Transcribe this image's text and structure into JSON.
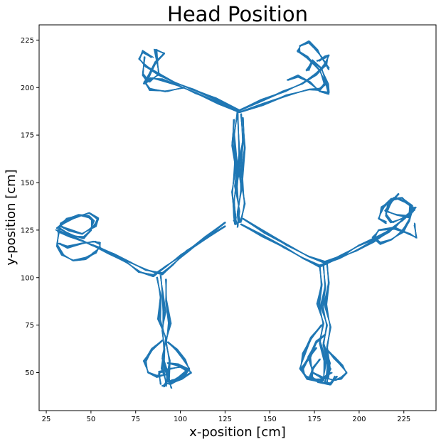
{
  "chart_data": {
    "type": "line",
    "title": "Head Position",
    "xlabel": "x-position [cm]",
    "ylabel": "y-position [cm]",
    "xlim": [
      21,
      243
    ],
    "ylim": [
      30,
      233
    ],
    "xticks": [
      25,
      50,
      75,
      100,
      125,
      150,
      175,
      200,
      225
    ],
    "yticks": [
      50,
      75,
      100,
      125,
      150,
      175,
      200,
      225
    ],
    "grid": false,
    "legend": "none",
    "color": "#1f77b4",
    "series": [
      {
        "segments": [
          {
            "x": [
              133,
              120,
              107,
              96,
              88,
              81,
              77,
              79,
              84
            ],
            "y": [
              188,
              194,
              199,
              203,
              207,
              211,
              215,
              219,
              216
            ]
          },
          {
            "x": [
              133,
              121,
              109,
              99,
              90,
              84,
              80,
              83,
              92,
              102
            ],
            "y": [
              187,
              192,
              197,
              201,
              204,
              205,
              203,
              199,
              198,
              200
            ]
          },
          {
            "x": [
              80,
              79,
              82,
              88,
              87,
              86,
              91,
              86,
              80
            ],
            "y": [
              216,
              207,
              203,
              207,
              214,
              220,
              218,
              213,
              202
            ]
          },
          {
            "x": [
              133,
              145,
              158,
              168,
              176,
              181,
              183,
              181,
              177
            ],
            "y": [
              188,
              193,
              198,
              202,
              207,
              212,
              217,
              216,
              214
            ]
          },
          {
            "x": [
              133,
              146,
              160,
              172,
              178,
              181,
              178,
              171,
              166,
              167,
              172,
              176,
              179,
              183
            ],
            "y": [
              187,
              191,
              196,
              199,
              199,
              202,
              209,
              216,
              219,
              222,
              224,
              220,
              216,
              210
            ]
          },
          {
            "x": [
              160,
              166,
              172,
              178,
              183,
              182,
              179,
              174,
              171
            ],
            "y": [
              204,
              206,
              203,
              198,
              197,
              202,
              210,
              214,
              209
            ]
          },
          {
            "x": [
              132,
              130,
              131,
              129,
              130,
              131,
              130
            ],
            "y": [
              187,
              175,
              160,
              145,
              133,
              128,
              130
            ]
          },
          {
            "x": [
              134,
              135,
              133,
              134,
              132,
              133
            ],
            "y": [
              186,
              172,
              158,
              146,
              134,
              129
            ]
          },
          {
            "x": [
              130,
              129,
              132,
              130,
              131
            ],
            "y": [
              183,
              170,
              155,
              140,
              131
            ]
          },
          {
            "x": [
              135,
              136,
              134,
              136,
              134
            ],
            "y": [
              184,
              168,
              152,
              139,
              130
            ]
          },
          {
            "x": [
              132,
              133,
              131,
              133,
              132
            ],
            "y": [
              188,
              165,
              148,
              135,
              127
            ]
          },
          {
            "x": [
              125,
              113,
              101,
              92,
              85,
              77,
              70,
              60,
              51,
              43,
              36,
              31
            ],
            "y": [
              127,
              120,
              112,
              106,
              101,
              103,
              108,
              113,
              117,
              120,
              123,
              125
            ]
          },
          {
            "x": [
              125,
              114,
              104,
              96,
              90,
              81,
              72,
              63,
              54,
              46,
              38,
              32
            ],
            "y": [
              129,
              121,
              114,
              107,
              102,
              104,
              108,
              112,
              116,
              119,
              122,
              124
            ]
          },
          {
            "x": [
              32,
              33,
              37,
              43,
              49,
              51,
              50,
              46,
              40,
              34,
              32
            ],
            "y": [
              124,
              128,
              131,
              133,
              132,
              130,
              125,
              121,
              122,
              125,
              126
            ]
          },
          {
            "x": [
              32,
              31,
              34,
              40,
              47,
              52,
              55,
              55,
              52,
              45,
              37,
              32
            ],
            "y": [
              124,
              117,
              112,
              109,
              110,
              113,
              116,
              118,
              119,
              118,
              116,
              118
            ]
          },
          {
            "x": [
              31,
              35,
              42,
              49,
              54,
              52,
              45,
              38,
              33
            ],
            "y": [
              126,
              129,
              132,
              134,
              131,
              127,
              123,
              125,
              127
            ]
          },
          {
            "x": [
              89,
              90,
              91,
              90,
              91,
              90,
              92,
              91
            ],
            "y": [
              101,
              92,
              82,
              72,
              62,
              52,
              45,
              43
            ]
          },
          {
            "x": [
              87,
              89,
              88,
              92,
              90,
              93,
              92
            ],
            "y": [
              100,
              90,
              78,
              68,
              58,
              48,
              43
            ]
          },
          {
            "x": [
              92,
              92,
              94,
              92,
              94,
              93,
              95
            ],
            "y": [
              99,
              88,
              76,
              66,
              56,
              47,
              42
            ]
          },
          {
            "x": [
              90,
              84,
              80,
              82,
              87,
              92
            ],
            "y": [
              67,
              62,
              56,
              50,
              48,
              49
            ]
          },
          {
            "x": [
              93,
              98,
              102,
              105,
              102,
              96,
              92
            ],
            "y": [
              66,
              62,
              57,
              52,
              48,
              46,
              45
            ]
          },
          {
            "x": [
              93,
              99,
              104,
              106,
              101,
              94
            ],
            "y": [
              55,
              54,
              52,
              50,
              47,
              44
            ]
          },
          {
            "x": [
              89,
              88,
              94,
              100,
              104,
              97,
              90
            ],
            "y": [
              44,
              50,
              52,
              53,
              51,
              46,
              43
            ]
          },
          {
            "x": [
              135,
              147,
              160,
              172,
              181,
              191,
              200,
              210,
              219,
              226,
              231
            ],
            "y": [
              131,
              124,
              117,
              111,
              108,
              112,
              117,
              121,
              126,
              132,
              136
            ]
          },
          {
            "x": [
              134,
              146,
              158,
              169,
              178,
              188,
              198,
              208,
              216,
              224,
              230
            ],
            "y": [
              128,
              122,
              116,
              110,
              106,
              110,
              114,
              119,
              124,
              130,
              135
            ]
          },
          {
            "x": [
              231,
              226,
              220,
              216,
              215,
              218,
              224,
              230,
              231
            ],
            "y": [
              136,
              140,
              142,
              138,
              133,
              129,
              131,
              135,
              137
            ]
          },
          {
            "x": [
              230,
              228,
              224,
              218,
              212,
              208,
              211,
              220,
              228,
              232,
              231
            ],
            "y": [
              136,
              130,
              124,
              120,
              118,
              121,
              125,
              126,
              123,
              121,
              128
            ]
          },
          {
            "x": [
              222,
              218,
              215,
              221,
              228,
              229,
              224,
              218,
              213,
              211,
              215
            ],
            "y": [
              144,
              140,
              135,
              133,
              132,
              138,
              142,
              141,
              137,
              131,
              129
            ]
          },
          {
            "x": [
              180,
              181,
              179,
              182,
              180,
              183,
              181
            ],
            "y": [
              107,
              95,
              85,
              75,
              65,
              55,
              45
            ]
          },
          {
            "x": [
              178,
              179,
              177,
              180,
              178,
              181,
              180
            ],
            "y": [
              106,
              96,
              86,
              76,
              66,
              56,
              46
            ]
          },
          {
            "x": [
              182,
              183,
              181,
              184,
              182,
              183,
              182
            ],
            "y": [
              108,
              97,
              86,
              74,
              63,
              52,
              44
            ]
          },
          {
            "x": [
              179,
              173,
              169,
              167,
              171,
              178,
              182
            ],
            "y": [
              75,
              68,
              60,
              52,
              47,
              45,
              48
            ]
          },
          {
            "x": [
              181,
              176,
              172,
              174,
              180,
              184
            ],
            "y": [
              70,
              66,
              58,
              50,
              47,
              50
            ]
          },
          {
            "x": [
              182,
              186,
              190,
              193,
              190,
              186,
              182
            ],
            "y": [
              62,
              58,
              54,
              50,
              47,
              46,
              47
            ]
          },
          {
            "x": [
              176,
              172,
              168,
              170,
              176,
              182,
              184
            ],
            "y": [
              63,
              58,
              52,
              48,
              46,
              47,
              52
            ]
          },
          {
            "x": [
              178,
              174,
              173,
              177,
              184,
              187
            ],
            "y": [
              57,
              52,
              48,
              45,
              44,
              48
            ]
          }
        ]
      }
    ]
  }
}
